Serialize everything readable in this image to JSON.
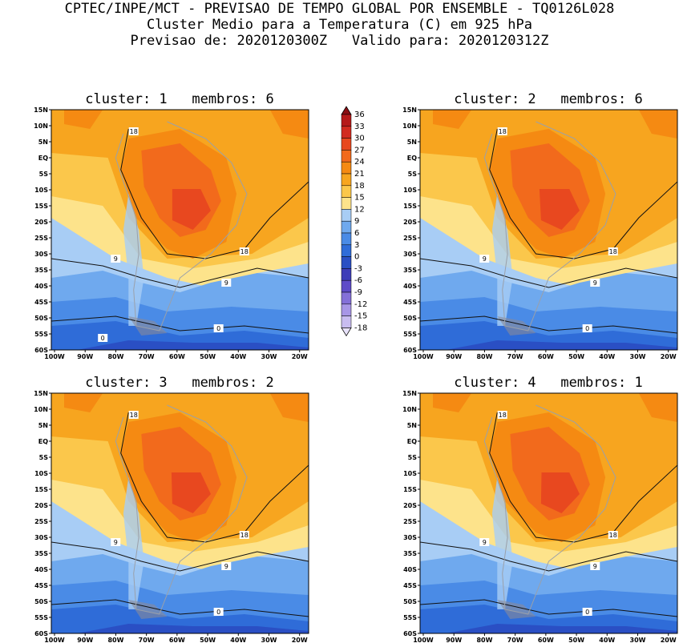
{
  "header": {
    "line1": "CPTEC/INPE/MCT - PREVISAO DE TEMPO GLOBAL POR ENSEMBLE - TQ0126L028",
    "line2": "Cluster Medio para a Temperatura (C) em 925 hPa",
    "line3": "Previsao de: 2020120300Z   Valido para: 2020120312Z"
  },
  "panels": [
    {
      "title": "cluster: 1   membros: 6"
    },
    {
      "title": "cluster: 2   membros: 6"
    },
    {
      "title": "cluster: 3   membros: 2"
    },
    {
      "title": "cluster: 4   membros: 1"
    }
  ],
  "lat_labels": [
    "15N",
    "10N",
    "5N",
    "EQ",
    "5S",
    "10S",
    "15S",
    "20S",
    "25S",
    "30S",
    "35S",
    "40S",
    "45S",
    "50S",
    "55S",
    "60S"
  ],
  "lon_labels": [
    "100W",
    "90W",
    "80W",
    "70W",
    "60W",
    "50W",
    "40W",
    "30W",
    "20W"
  ],
  "colorbar": {
    "labels": [
      "36",
      "33",
      "30",
      "27",
      "24",
      "21",
      "18",
      "15",
      "12",
      "9",
      "6",
      "3",
      "0",
      "-3",
      "-6",
      "-9",
      "-12",
      "-15",
      "-18"
    ],
    "colors": [
      "#8b0f14",
      "#b51a1a",
      "#d22b20",
      "#e8481f",
      "#f26a1c",
      "#f58a12",
      "#f7a51f",
      "#fbc74b",
      "#fde38b",
      "#a8cdf5",
      "#6fa9ee",
      "#4a8be6",
      "#2f6cd8",
      "#2a4fc4",
      "#3d3db8",
      "#5e4bc8",
      "#8470d8",
      "#a796e6",
      "#c8bcf0",
      "#e8e2fa"
    ]
  },
  "contour_labels": {
    "p1": [
      "18",
      "18",
      "9",
      "9",
      "0",
      "0"
    ],
    "p2": [
      "18",
      "18",
      "9",
      "9",
      "0"
    ],
    "p3": [
      "18",
      "18",
      "9",
      "9",
      "0"
    ],
    "p4": [
      "18",
      "18",
      "9",
      "9",
      "0"
    ]
  }
}
